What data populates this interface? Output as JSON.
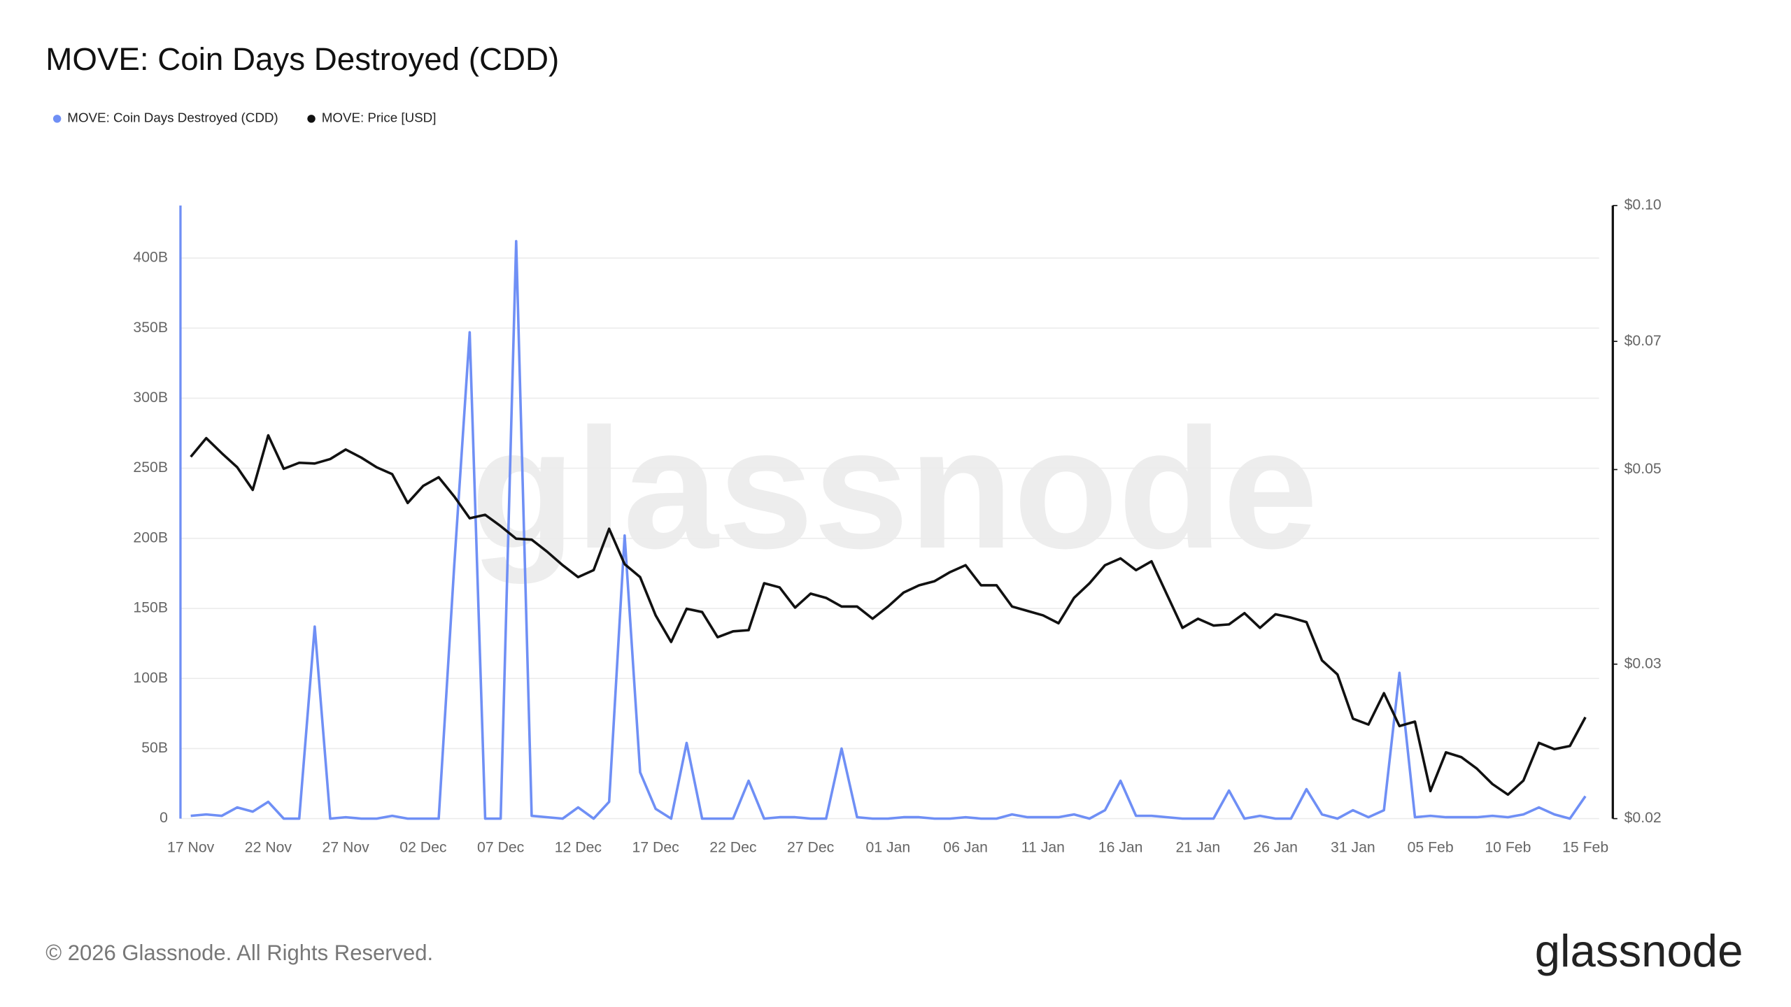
{
  "chart_data": {
    "type": "line",
    "title": "MOVE: Coin Days Destroyed (CDD)",
    "watermark": "glassnode",
    "logo": "glassnode",
    "footer": "© 2026 Glassnode. All Rights Reserved.",
    "legend": "top-left",
    "grid": true,
    "categories": [
      "17 Nov",
      null,
      null,
      null,
      null,
      "22 Nov",
      null,
      null,
      null,
      null,
      "27 Nov",
      null,
      null,
      null,
      null,
      "02 Dec",
      null,
      null,
      null,
      null,
      "07 Dec",
      null,
      null,
      null,
      null,
      "12 Dec",
      null,
      null,
      null,
      null,
      "17 Dec",
      null,
      null,
      null,
      null,
      "22 Dec",
      null,
      null,
      null,
      null,
      "27 Dec",
      null,
      null,
      null,
      null,
      "01 Jan",
      null,
      null,
      null,
      null,
      "06 Jan",
      null,
      null,
      null,
      null,
      "11 Jan",
      null,
      null,
      null,
      null,
      "16 Jan",
      null,
      null,
      null,
      null,
      "21 Jan",
      null,
      null,
      null,
      null,
      "26 Jan",
      null,
      null,
      null,
      null,
      "31 Jan",
      null,
      null,
      null,
      null,
      "05 Feb",
      null,
      null,
      null,
      null,
      "10 Feb",
      null,
      null,
      null,
      null,
      "15 Feb"
    ],
    "series": [
      {
        "name": "MOVE: Coin Days Destroyed (CDD)",
        "color": "#6f8ff5",
        "axis": "y",
        "values": [
          2,
          3,
          2,
          8,
          5,
          12,
          0,
          0,
          137,
          0,
          1,
          0,
          0,
          2,
          0,
          0,
          0,
          180,
          347,
          0,
          0,
          412,
          2,
          1,
          0,
          8,
          0,
          12,
          202,
          33,
          7,
          0,
          54,
          0,
          0,
          0,
          27,
          0,
          1,
          1,
          0,
          0,
          50,
          1,
          0,
          0,
          1,
          1,
          0,
          0,
          1,
          0,
          0,
          3,
          1,
          1,
          1,
          3,
          0,
          6,
          27,
          2,
          2,
          1,
          0,
          0,
          0,
          20,
          0,
          2,
          0,
          0,
          21,
          3,
          0,
          6,
          1,
          6,
          104,
          1,
          2,
          1,
          1,
          1,
          2,
          1,
          3,
          8,
          3,
          0,
          16
        ]
      },
      {
        "name": "MOVE: Price [USD]",
        "color": "#111111",
        "axis": "y2",
        "values": [
          0.0517,
          0.0543,
          0.0522,
          0.0503,
          0.0474,
          0.0547,
          0.0501,
          0.0509,
          0.0508,
          0.0514,
          0.0527,
          0.0516,
          0.0503,
          0.0494,
          0.0458,
          0.0479,
          0.049,
          0.0466,
          0.044,
          0.0444,
          0.0431,
          0.0417,
          0.0416,
          0.0403,
          0.0389,
          0.0377,
          0.0384,
          0.0428,
          0.039,
          0.0377,
          0.0341,
          0.0318,
          0.0347,
          0.0344,
          0.0322,
          0.0327,
          0.0328,
          0.0371,
          0.0367,
          0.0348,
          0.0361,
          0.0357,
          0.0349,
          0.0349,
          0.0338,
          0.0349,
          0.0362,
          0.0369,
          0.0373,
          0.0382,
          0.0389,
          0.0369,
          0.0369,
          0.0349,
          0.0345,
          0.0341,
          0.0334,
          0.0357,
          0.0371,
          0.0389,
          0.0396,
          0.0384,
          0.0393,
          0.036,
          0.033,
          0.0338,
          0.0332,
          0.0333,
          0.0343,
          0.033,
          0.0342,
          0.0339,
          0.0335,
          0.0303,
          0.0292,
          0.026,
          0.0256,
          0.0278,
          0.0255,
          0.0258,
          0.0215,
          0.0238,
          0.0235,
          0.0228,
          0.0219,
          0.0213,
          0.0221,
          0.0244,
          0.024,
          0.0242,
          0.0261
        ]
      }
    ],
    "ylim": [
      0,
      437.5
    ],
    "yticks": [
      0,
      {
        "value": 50,
        "label": "50B"
      },
      {
        "value": 100,
        "label": "100B"
      },
      {
        "value": 150,
        "label": "150B"
      },
      {
        "value": 200,
        "label": "200B"
      },
      {
        "value": 250,
        "label": "250B"
      },
      {
        "value": 300,
        "label": "300B"
      },
      {
        "value": 350,
        "label": "350B"
      },
      {
        "value": 400,
        "label": "400B"
      }
    ],
    "y2lim": [
      0.02,
      0.1
    ],
    "y2log": true,
    "y2ticks": [
      {
        "value": 0.02,
        "label": "$0.02"
      },
      {
        "value": 0.03,
        "label": "$0.03"
      },
      {
        "value": 0.05,
        "label": "$0.05"
      },
      {
        "value": 0.07,
        "label": "$0.07"
      },
      {
        "value": 0.1,
        "label": "$0.10"
      }
    ]
  }
}
